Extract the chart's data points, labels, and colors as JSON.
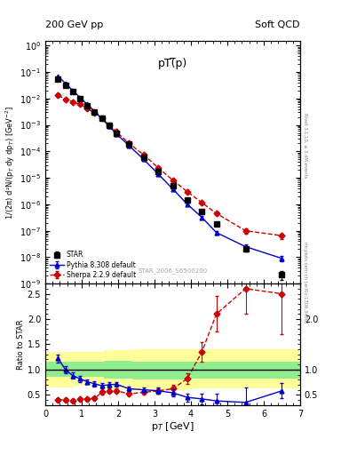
{
  "title_left": "200 GeV pp",
  "title_right": "Soft QCD",
  "plot_title": "pT(̅p)",
  "watermark": "STAR_2006_S6500200",
  "right_label_top": "Rivet 3.1.10, ≥ 3.4M events",
  "right_label_bottom": "mcplots.cern.ch [arXiv:1306.3436]",
  "xlabel": "p$_T$ [GeV]",
  "ylabel_main": "1/(2π) d²N/(p$_T$ dy dp$_T$) [GeV$^{-2}$]",
  "ylabel_ratio": "Ratio to STAR",
  "star_x": [
    0.35,
    0.55,
    0.75,
    0.95,
    1.15,
    1.35,
    1.55,
    1.75,
    1.95,
    2.3,
    2.7,
    3.1,
    3.5,
    3.9,
    4.3,
    4.7,
    5.5,
    6.5
  ],
  "star_y": [
    0.055,
    0.032,
    0.018,
    0.01,
    0.0055,
    0.0032,
    0.0018,
    0.00095,
    0.0005,
    0.000185,
    6e-05,
    1.75e-05,
    5.2e-06,
    1.5e-06,
    5.2e-07,
    1.8e-07,
    2e-08,
    2.2e-09
  ],
  "star_yerr": [
    0.003,
    0.002,
    0.001,
    0.0005,
    0.0003,
    0.00015,
    8e-05,
    4e-05,
    2e-05,
    8e-06,
    3e-06,
    1e-06,
    3e-07,
    1e-07,
    4e-08,
    2e-08,
    4e-09,
    8e-10
  ],
  "pythia_x": [
    0.35,
    0.55,
    0.75,
    0.95,
    1.15,
    1.35,
    1.55,
    1.75,
    1.95,
    2.3,
    2.7,
    3.1,
    3.5,
    3.9,
    4.3,
    4.7,
    5.5,
    6.5
  ],
  "pythia_y": [
    0.068,
    0.038,
    0.02,
    0.011,
    0.006,
    0.0033,
    0.00175,
    0.0009,
    0.00046,
    0.000165,
    5e-05,
    1.4e-05,
    3.8e-06,
    1e-06,
    3.2e-07,
    8.5e-08,
    2.5e-08,
    9e-09
  ],
  "pythia_yerr": [
    0.003,
    0.002,
    0.001,
    0.0005,
    0.0003,
    0.00015,
    8e-05,
    4e-05,
    2e-05,
    7e-06,
    2.5e-06,
    8e-07,
    2.5e-07,
    8e-08,
    3e-08,
    1.5e-08,
    5e-09,
    2e-09
  ],
  "sherpa_x": [
    0.35,
    0.55,
    0.75,
    0.95,
    1.15,
    1.35,
    1.55,
    1.75,
    1.95,
    2.3,
    2.7,
    3.1,
    3.5,
    3.9,
    4.3,
    4.7,
    5.5,
    6.5
  ],
  "sherpa_y": [
    0.013,
    0.0095,
    0.0075,
    0.006,
    0.0042,
    0.0028,
    0.00175,
    0.001,
    0.00055,
    0.0002,
    7.5e-05,
    2.4e-05,
    8.2e-06,
    3e-06,
    1.15e-06,
    4.5e-07,
    1e-07,
    6.5e-08
  ],
  "sherpa_yerr": [
    0.001,
    0.0005,
    0.0004,
    0.0003,
    0.0002,
    0.00015,
    0.0001,
    5e-05,
    3e-05,
    1e-05,
    4e-06,
    1.2e-06,
    5e-07,
    2e-07,
    1e-07,
    5e-08,
    2e-08,
    1.5e-08
  ],
  "pythia_ratio_x": [
    0.35,
    0.55,
    0.75,
    0.95,
    1.15,
    1.35,
    1.55,
    1.75,
    1.95,
    2.3,
    2.7,
    3.1,
    3.5,
    3.9,
    4.3,
    4.7,
    5.5,
    6.5
  ],
  "pythia_ratio_y": [
    1.22,
    1.0,
    0.88,
    0.82,
    0.76,
    0.72,
    0.68,
    0.7,
    0.71,
    0.62,
    0.6,
    0.58,
    0.54,
    0.45,
    0.42,
    0.38,
    0.35,
    0.58
  ],
  "pythia_ratio_yerr": [
    0.08,
    0.07,
    0.06,
    0.06,
    0.05,
    0.05,
    0.05,
    0.05,
    0.05,
    0.05,
    0.05,
    0.06,
    0.07,
    0.08,
    0.1,
    0.15,
    0.3,
    0.15
  ],
  "sherpa_ratio_x": [
    0.35,
    0.55,
    0.75,
    0.95,
    1.15,
    1.35,
    1.55,
    1.75,
    1.95,
    2.3,
    2.7,
    3.1,
    3.5,
    3.9,
    4.3,
    4.7,
    5.5,
    6.5
  ],
  "sherpa_ratio_y": [
    0.4,
    0.4,
    0.38,
    0.42,
    0.42,
    0.43,
    0.55,
    0.58,
    0.58,
    0.52,
    0.55,
    0.58,
    0.62,
    0.82,
    1.35,
    2.1,
    2.6,
    2.5
  ],
  "sherpa_ratio_yerr": [
    0.04,
    0.04,
    0.03,
    0.04,
    0.03,
    0.03,
    0.04,
    0.04,
    0.04,
    0.04,
    0.04,
    0.05,
    0.07,
    0.1,
    0.2,
    0.35,
    0.5,
    0.8
  ],
  "band_edges": [
    0.0,
    0.8,
    1.6,
    2.4,
    3.2,
    4.0,
    5.2,
    7.0
  ],
  "band_green_low": [
    0.85,
    0.85,
    0.82,
    0.8,
    0.8,
    0.82,
    0.82,
    0.82
  ],
  "band_green_high": [
    1.15,
    1.15,
    1.18,
    1.15,
    1.15,
    1.15,
    1.15,
    1.15
  ],
  "band_yellow_low": [
    0.65,
    0.68,
    0.62,
    0.6,
    0.6,
    0.62,
    0.62,
    0.62
  ],
  "band_yellow_high": [
    1.35,
    1.35,
    1.38,
    1.4,
    1.4,
    1.4,
    1.4,
    1.4
  ],
  "xlim": [
    0.0,
    7.0
  ],
  "ylim_main": [
    1e-09,
    1.5
  ],
  "ylim_ratio": [
    0.3,
    2.7
  ],
  "color_star": "#000000",
  "color_pythia": "#0000cc",
  "color_sherpa": "#cc0000",
  "color_band_green": "#90ee90",
  "color_band_yellow": "#ffff99"
}
